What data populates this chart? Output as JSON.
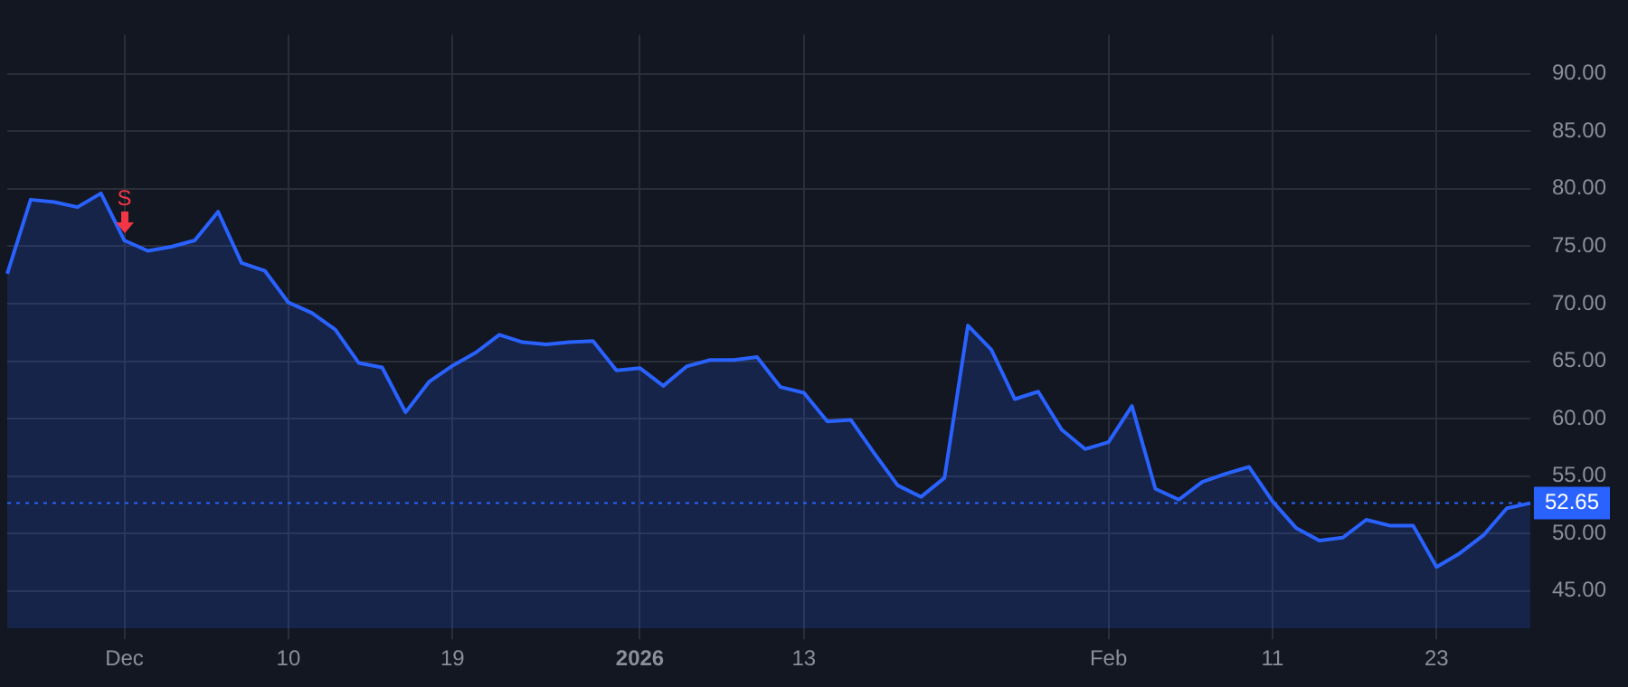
{
  "chart_data": {
    "type": "area",
    "categories": [
      null,
      null,
      null,
      null,
      null,
      "Dec",
      null,
      null,
      null,
      null,
      null,
      null,
      "10",
      null,
      null,
      null,
      null,
      null,
      null,
      "19",
      null,
      null,
      null,
      null,
      null,
      null,
      null,
      "2026",
      null,
      null,
      null,
      null,
      null,
      null,
      "13",
      null,
      null,
      null,
      null,
      null,
      null,
      null,
      null,
      null,
      null,
      null,
      null,
      "Feb",
      null,
      null,
      null,
      null,
      null,
      null,
      "11",
      null,
      null,
      null,
      null,
      null,
      null,
      "23",
      null,
      null,
      null,
      null
    ],
    "series": [
      {
        "color": "#2962ff",
        "values": [
          72.6,
          79.05,
          78.85,
          78.4,
          79.6,
          75.5,
          74.6,
          74.95,
          75.5,
          78.0,
          73.55,
          72.85,
          70.1,
          69.2,
          67.75,
          64.85,
          64.45,
          60.55,
          63.2,
          64.6,
          65.75,
          67.3,
          66.65,
          66.45,
          66.65,
          66.75,
          64.2,
          64.4,
          62.85,
          64.55,
          65.1,
          65.1,
          65.35,
          62.75,
          62.25,
          59.75,
          59.9,
          57.0,
          54.2,
          53.2,
          54.85,
          68.1,
          66.0,
          61.7,
          62.35,
          59.05,
          57.35,
          57.95,
          61.1,
          53.9,
          52.95,
          54.5,
          55.2,
          55.8,
          52.8,
          50.5,
          49.4,
          49.65,
          51.2,
          50.7,
          50.7,
          47.1,
          48.3,
          49.85,
          52.2,
          52.65
        ]
      }
    ],
    "ylim": [
      41.75,
      93.4
    ],
    "yticks": [
      {
        "value": 45,
        "label": "45.00"
      },
      {
        "value": 50,
        "label": "50.00"
      },
      {
        "value": 55,
        "label": "55.00"
      },
      {
        "value": 60,
        "label": "60.00"
      },
      {
        "value": 65,
        "label": "65.00"
      },
      {
        "value": 70,
        "label": "70.00"
      },
      {
        "value": 75,
        "label": "75.00"
      },
      {
        "value": 80,
        "label": "80.00"
      },
      {
        "value": 85,
        "label": "85.00"
      },
      {
        "value": 90,
        "label": "90.00"
      }
    ],
    "grid": true,
    "legend": false,
    "ref_lines": [
      {
        "axis": "y",
        "value": 52.65,
        "label": "52.65",
        "color": "#2962ff",
        "line_style": "dotted"
      }
    ],
    "annotations": [
      {
        "text": "S",
        "x": "Dec",
        "y": 75.5
      }
    ]
  }
}
